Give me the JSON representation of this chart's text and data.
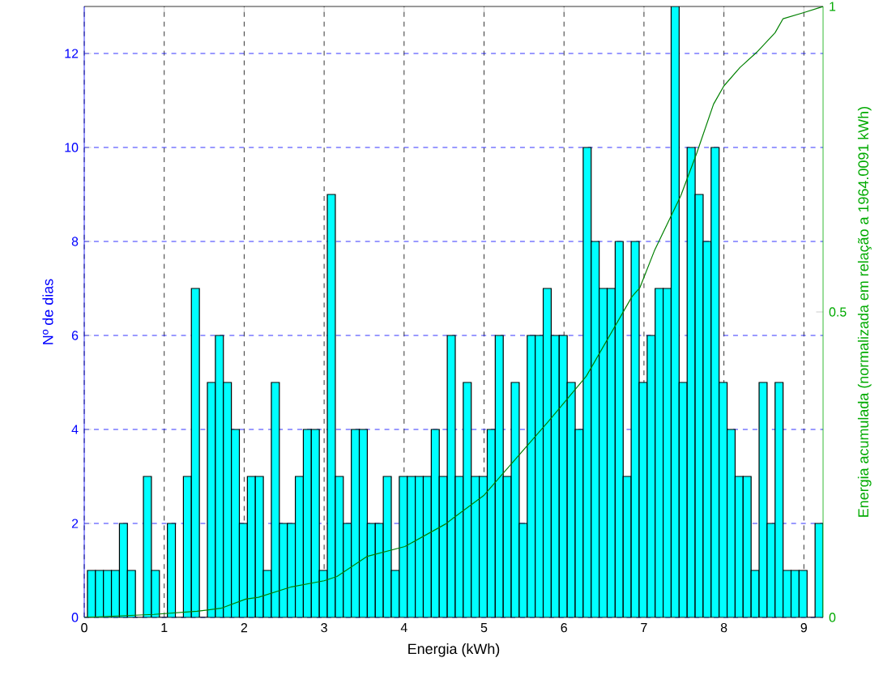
{
  "chart_data": {
    "type": "histogram",
    "xlabel": "Energia (kWh)",
    "ylabel": "Nº de dias",
    "y2label": "Energia acumulada (normalizada em relação a 1964.0091 kWh)",
    "bins": [
      0.04,
      0.14,
      0.24,
      0.34,
      0.44,
      0.54,
      0.64,
      0.74,
      0.84,
      0.94,
      1.04,
      1.14,
      1.24,
      1.34,
      1.44,
      1.54,
      1.64,
      1.74,
      1.84,
      1.94,
      2.04,
      2.14,
      2.24,
      2.34,
      2.44,
      2.54,
      2.64,
      2.74,
      2.84,
      2.94,
      3.04,
      3.14,
      3.24,
      3.34,
      3.44,
      3.54,
      3.64,
      3.74,
      3.84,
      3.94,
      4.04,
      4.14,
      4.24,
      4.34,
      4.44,
      4.54,
      4.64,
      4.74,
      4.84,
      4.94,
      5.04,
      5.14,
      5.24,
      5.34,
      5.44,
      5.54,
      5.64,
      5.74,
      5.84,
      5.94,
      6.04,
      6.14,
      6.24,
      6.34,
      6.44,
      6.54,
      6.64,
      6.74,
      6.84,
      6.94,
      7.04,
      7.14,
      7.24,
      7.34,
      7.44,
      7.54,
      7.64,
      7.74,
      7.84,
      7.94,
      8.04,
      8.14,
      8.24,
      8.34,
      8.44,
      8.54,
      8.64,
      8.74,
      8.84,
      8.94,
      9.04,
      9.14,
      9.24
    ],
    "series": [
      {
        "color": "#00ffff",
        "values": [
          1,
          1,
          1,
          1,
          2,
          1,
          0,
          3,
          1,
          0,
          2,
          0,
          3,
          7,
          0,
          5,
          6,
          5,
          4,
          2,
          3,
          3,
          1,
          5,
          2,
          2,
          3,
          4,
          4,
          1,
          9,
          3,
          2,
          4,
          4,
          2,
          2,
          3,
          1,
          3,
          3,
          3,
          3,
          4,
          3,
          6,
          3,
          5,
          3,
          3,
          4,
          6,
          3,
          5,
          2,
          6,
          6,
          7,
          6,
          6,
          5,
          4,
          10,
          8,
          7,
          7,
          8,
          3,
          8,
          5,
          6,
          7,
          7,
          13,
          5,
          10,
          9,
          8,
          10,
          5,
          4,
          3,
          3,
          1,
          5,
          2,
          5,
          1,
          1,
          1,
          0,
          2
        ]
      },
      {
        "type": "line",
        "axis": "y2",
        "color": "#008000",
        "x": [
          0,
          0.87,
          1.41,
          1.71,
          2.02,
          2.18,
          2.59,
          3.0,
          3.16,
          3.54,
          4.01,
          4.52,
          4.62,
          5.0,
          5.8,
          6.28,
          6.85,
          6.95,
          7.13,
          7.46,
          7.66,
          7.87,
          8.0,
          8.2,
          8.41,
          8.64,
          8.74,
          9.0,
          9.24
        ],
        "values": [
          0,
          0.005,
          0.01,
          0.015,
          0.03,
          0.033,
          0.05,
          0.06,
          0.067,
          0.1,
          0.116,
          0.153,
          0.163,
          0.2,
          0.32,
          0.395,
          0.525,
          0.54,
          0.6,
          0.69,
          0.76,
          0.84,
          0.87,
          0.9,
          0.925,
          0.957,
          0.98,
          0.99,
          1.0
        ]
      }
    ],
    "xlim": [
      0,
      9.24
    ],
    "ylim": [
      0,
      13
    ],
    "y2lim": [
      0,
      1
    ],
    "xticks": [
      0,
      1,
      2,
      3,
      4,
      5,
      6,
      7,
      8,
      9
    ],
    "yticks": [
      0,
      2,
      4,
      6,
      8,
      10,
      12
    ],
    "y2ticks": [
      0,
      0.5,
      1
    ],
    "grid": true,
    "marker": "none"
  }
}
